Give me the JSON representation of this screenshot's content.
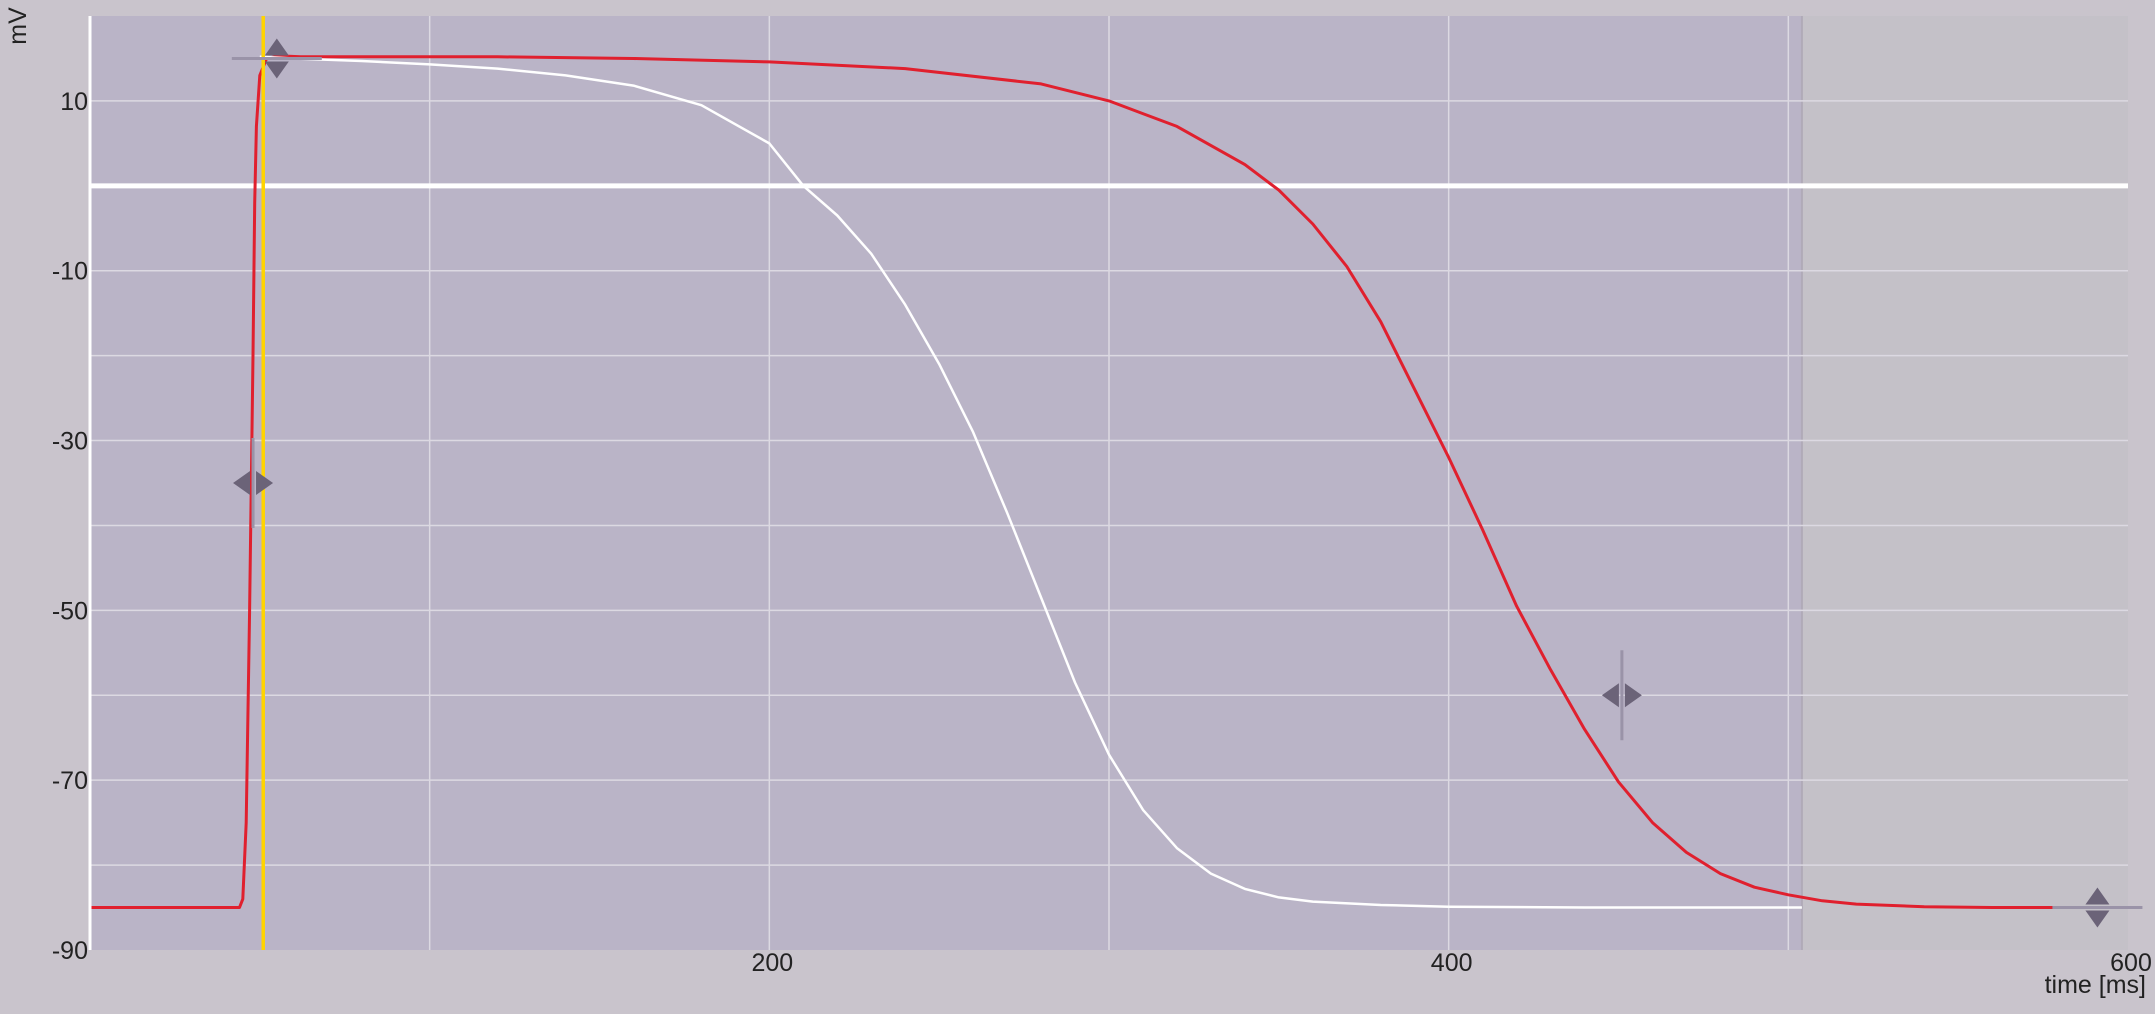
{
  "chart_data": {
    "type": "line",
    "ylabel": "mV",
    "xlabel": "time [ms]",
    "xlim": [
      0,
      600
    ],
    "ylim": [
      -90,
      20
    ],
    "x_ticks": [
      {
        "value": 200,
        "label": "200"
      },
      {
        "value": 400,
        "label": "400"
      },
      {
        "value": 600,
        "label": "600"
      }
    ],
    "y_ticks": [
      {
        "value": 10,
        "label": "10"
      },
      {
        "value": -10,
        "label": "-10"
      },
      {
        "value": -30,
        "label": "-30"
      },
      {
        "value": -50,
        "label": "-50"
      },
      {
        "value": -70,
        "label": "-70"
      },
      {
        "value": -90,
        "label": "-90"
      }
    ],
    "x_gridlines": [
      100,
      200,
      300,
      400,
      500
    ],
    "y_gridlines": [
      10,
      0,
      -10,
      -20,
      -30,
      -40,
      -50,
      -60,
      -70,
      -80
    ],
    "grid": true,
    "shaded_region": {
      "from": 504,
      "to": 600
    },
    "threshold_line": {
      "y": 0
    },
    "cursor_line": {
      "x": 51
    },
    "series": [
      {
        "color": "#e0202e",
        "x": [
          0,
          44,
          45,
          46,
          47,
          48,
          48.5,
          49,
          50,
          52,
          56,
          62,
          80,
          120,
          160,
          200,
          240,
          280,
          300,
          320,
          340,
          350,
          360,
          370,
          380,
          390,
          400,
          410,
          420,
          430,
          440,
          450,
          460,
          470,
          480,
          490,
          500,
          510,
          520,
          540,
          560,
          580,
          600
        ],
        "y": [
          -85,
          -85,
          -84,
          -75,
          -50,
          -20,
          -2,
          7,
          13,
          15,
          15.3,
          15.2,
          15.2,
          15.2,
          15,
          14.6,
          13.8,
          12,
          10,
          7,
          2.5,
          -0.5,
          -4.5,
          -9.5,
          -16,
          -24,
          -32,
          -40.5,
          -49.5,
          -57,
          -64,
          -70.2,
          -75,
          -78.5,
          -81,
          -82.6,
          -83.5,
          -84.2,
          -84.6,
          -84.9,
          -85,
          -85,
          -85
        ]
      },
      {
        "color": "#ffffff",
        "x": [
          50,
          60,
          80,
          100,
          120,
          140,
          160,
          180,
          200,
          210,
          220,
          230,
          240,
          250,
          260,
          270,
          280,
          290,
          300,
          310,
          320,
          330,
          340,
          350,
          360,
          380,
          400,
          440,
          480,
          504
        ],
        "y": [
          15.2,
          15,
          14.7,
          14.3,
          13.8,
          13,
          11.8,
          9.5,
          5,
          0,
          -3.5,
          -8,
          -14,
          -21,
          -29,
          -38.5,
          -48.5,
          -58.5,
          -67,
          -73.5,
          -78,
          -81,
          -82.8,
          -83.8,
          -84.3,
          -84.7,
          -84.9,
          -85,
          -85,
          -85
        ]
      }
    ],
    "markers": [
      {
        "x": 55,
        "y": 15,
        "type": "vertical-diamond"
      },
      {
        "x": 48,
        "y": -35,
        "type": "horizontal-diamond"
      },
      {
        "x": 451,
        "y": -60,
        "type": "horizontal-diamond"
      },
      {
        "x": 591,
        "y": -85,
        "type": "vertical-diamond"
      }
    ]
  },
  "colors": {
    "plot_bg": "#bab4c7",
    "shaded_bg": "#c4c1c8",
    "grid": "#dcd9e2",
    "threshold": "#ffffff",
    "cursor": "#ffd400",
    "marker": "#6b6378",
    "marker_bar": "#9a93a8"
  }
}
